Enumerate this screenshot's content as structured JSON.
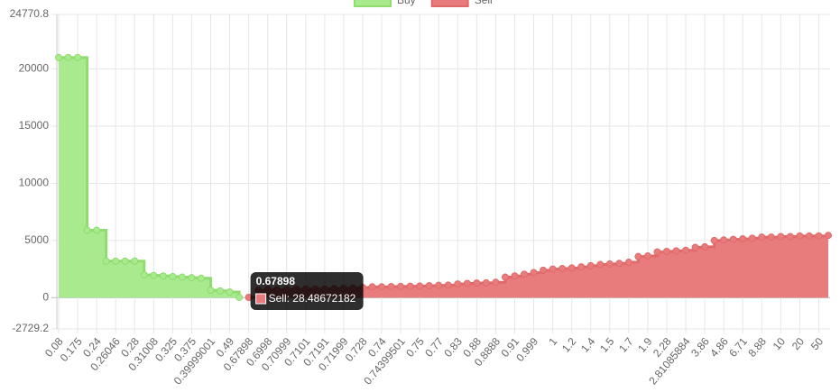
{
  "chart_data": {
    "type": "stepped-area",
    "categories": [
      "0.08",
      null,
      "0.175",
      null,
      "0.24",
      null,
      "0.26046",
      null,
      "0.28",
      null,
      "0.31008",
      null,
      "0.325",
      null,
      "0.375",
      null,
      "0.39999001",
      null,
      "0.49",
      null,
      "0.67898",
      null,
      "0.6998",
      null,
      "0.70999",
      null,
      "0.7101",
      null,
      "0.7191",
      null,
      "0.71999",
      null,
      "0.728",
      null,
      "0.74",
      null,
      "0.74399501",
      null,
      "0.75",
      null,
      "0.77",
      null,
      "0.83",
      null,
      "0.88",
      null,
      "0.8888",
      null,
      "0.91",
      null,
      "0.999",
      null,
      "1",
      null,
      "1.2",
      null,
      "1.4",
      null,
      "1.5",
      null,
      "1.7",
      null,
      "1.9",
      null,
      "2.28",
      null,
      "2.81085884",
      null,
      "3.86",
      null,
      "4.86",
      null,
      "6.71",
      null,
      "8.88",
      null,
      "10",
      null,
      "20",
      null,
      "50",
      null
    ],
    "series": [
      {
        "name": "Buy",
        "color": "#8fdc6f",
        "fill": "#a9ea8f",
        "values": [
          21000,
          21000,
          21000,
          5900,
          5900,
          3200,
          3200,
          3200,
          3200,
          2000,
          1950,
          1900,
          1850,
          1800,
          1750,
          1700,
          650,
          600,
          500,
          30,
          null,
          null,
          null,
          null,
          null,
          null,
          null,
          null,
          null,
          null,
          null,
          null,
          null,
          null,
          null,
          null,
          null,
          null,
          null,
          null,
          null,
          null,
          null,
          null,
          null,
          null,
          null,
          null,
          null,
          null,
          null,
          null,
          null,
          null,
          null,
          null,
          null,
          null,
          null,
          null,
          null,
          null,
          null,
          null,
          null,
          null,
          null,
          null,
          null,
          null,
          null,
          null,
          null,
          null,
          null,
          null,
          null,
          null,
          null,
          null,
          null,
          null
        ]
      },
      {
        "name": "Sell",
        "color": "#e06a6a",
        "fill": "#e87c7c",
        "values": [
          null,
          null,
          null,
          null,
          null,
          null,
          null,
          null,
          null,
          null,
          null,
          null,
          null,
          null,
          null,
          null,
          null,
          null,
          null,
          null,
          28.48672182,
          650,
          700,
          700,
          720,
          740,
          750,
          760,
          780,
          800,
          820,
          850,
          900,
          950,
          950,
          970,
          980,
          1000,
          1020,
          1050,
          1080,
          1100,
          1200,
          1250,
          1280,
          1300,
          1350,
          1800,
          1900,
          2050,
          2200,
          2400,
          2500,
          2550,
          2600,
          2700,
          2800,
          2900,
          2950,
          3000,
          3100,
          3600,
          3650,
          4000,
          4050,
          4100,
          4150,
          4400,
          4450,
          5000,
          5050,
          5100,
          5150,
          5200,
          5300,
          5300,
          5350,
          5350,
          5400,
          5400,
          5400,
          5450
        ]
      }
    ],
    "ylim": [
      -2729.2,
      24770.8
    ],
    "yticks": [
      -2729.2,
      0,
      5000,
      10000,
      15000,
      20000,
      24770.8
    ],
    "grid": true,
    "legend": "top",
    "tooltip": {
      "index": 20,
      "title": "0.67898",
      "label": "Sell: 28.48672182"
    }
  }
}
